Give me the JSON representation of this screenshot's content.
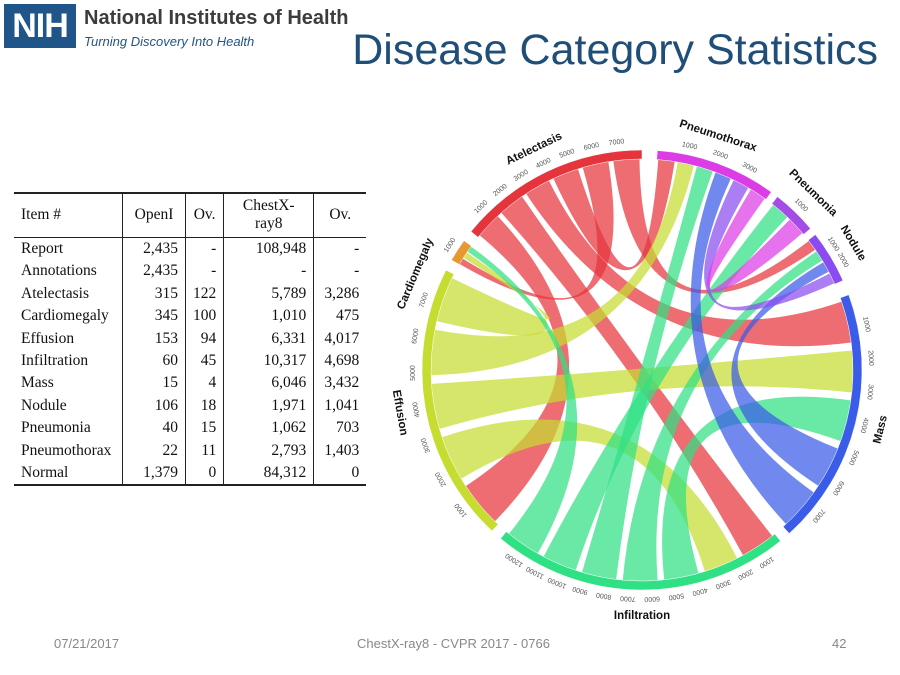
{
  "header": {
    "logo_text": "NIH",
    "org_name": "National Institutes of Health",
    "tagline": "Turning Discovery Into Health",
    "title": "Disease Category Statistics"
  },
  "table": {
    "columns": [
      "Item #",
      "OpenI",
      "Ov.",
      "ChestX-ray8",
      "Ov."
    ],
    "rows": [
      [
        "Report",
        "2,435",
        "-",
        "108,948",
        "-"
      ],
      [
        "Annotations",
        "2,435",
        "-",
        "-",
        "-"
      ],
      [
        "Atelectasis",
        "315",
        "122",
        "5,789",
        "3,286"
      ],
      [
        "Cardiomegaly",
        "345",
        "100",
        "1,010",
        "475"
      ],
      [
        "Effusion",
        "153",
        "94",
        "6,331",
        "4,017"
      ],
      [
        "Infiltration",
        "60",
        "45",
        "10,317",
        "4,698"
      ],
      [
        "Mass",
        "15",
        "4",
        "6,046",
        "3,432"
      ],
      [
        "Nodule",
        "106",
        "18",
        "1,971",
        "1,041"
      ],
      [
        "Pneumonia",
        "40",
        "15",
        "1,062",
        "703"
      ],
      [
        "Pneumothorax",
        "22",
        "11",
        "2,793",
        "1,403"
      ],
      [
        "Normal",
        "1,379",
        "0",
        "84,312",
        "0"
      ]
    ]
  },
  "chart_data": {
    "type": "chord",
    "title": "",
    "groups": [
      {
        "name": "Pneumothorax",
        "color": "#dc3ce6",
        "ticks": [
          "1000",
          "2000",
          "3000"
        ]
      },
      {
        "name": "Pneumonia",
        "color": "#a64ce6",
        "ticks": [
          "1000"
        ]
      },
      {
        "name": "Nodule",
        "color": "#8a4cf0",
        "ticks": [
          "1000",
          "2000"
        ]
      },
      {
        "name": "Mass",
        "color": "#3a5ce8",
        "ticks": [
          "1000",
          "2000",
          "3000",
          "4000",
          "5000",
          "6000",
          "7000"
        ]
      },
      {
        "name": "Infiltration",
        "color": "#30e084",
        "ticks": [
          "1000",
          "2000",
          "3000",
          "4000",
          "5000",
          "6000",
          "7000",
          "8000",
          "9000",
          "10000",
          "11000",
          "12000"
        ]
      },
      {
        "name": "Effusion",
        "color": "#c6dc30",
        "ticks": [
          "1000",
          "2000",
          "3000",
          "4000",
          "5000",
          "6000",
          "7000"
        ]
      },
      {
        "name": "Cardiomegaly",
        "color": "#e89830",
        "ticks": [
          "1000"
        ]
      },
      {
        "name": "Atelectasis",
        "color": "#e6343c",
        "ticks": [
          "1000",
          "2000",
          "3000",
          "4000",
          "5000",
          "6000",
          "7000"
        ]
      }
    ],
    "ribbons": [
      [
        "Atelectasis",
        "Effusion"
      ],
      [
        "Atelectasis",
        "Infiltration"
      ],
      [
        "Atelectasis",
        "Mass"
      ],
      [
        "Atelectasis",
        "Pneumothorax"
      ],
      [
        "Atelectasis",
        "Cardiomegaly"
      ],
      [
        "Atelectasis",
        "Nodule"
      ],
      [
        "Effusion",
        "Infiltration"
      ],
      [
        "Effusion",
        "Mass"
      ],
      [
        "Effusion",
        "Pneumothorax"
      ],
      [
        "Effusion",
        "Cardiomegaly"
      ],
      [
        "Infiltration",
        "Mass"
      ],
      [
        "Infiltration",
        "Nodule"
      ],
      [
        "Infiltration",
        "Pneumothorax"
      ],
      [
        "Infiltration",
        "Pneumonia"
      ],
      [
        "Mass",
        "Nodule"
      ],
      [
        "Mass",
        "Pneumothorax"
      ],
      [
        "Nodule",
        "Pneumothorax"
      ],
      [
        "Pneumothorax",
        "Pneumonia"
      ],
      [
        "Infiltration",
        "Cardiomegaly"
      ]
    ]
  },
  "footer": {
    "date": "07/21/2017",
    "center": "ChestX-ray8 - CVPR 2017 - 0766",
    "page": "42"
  }
}
